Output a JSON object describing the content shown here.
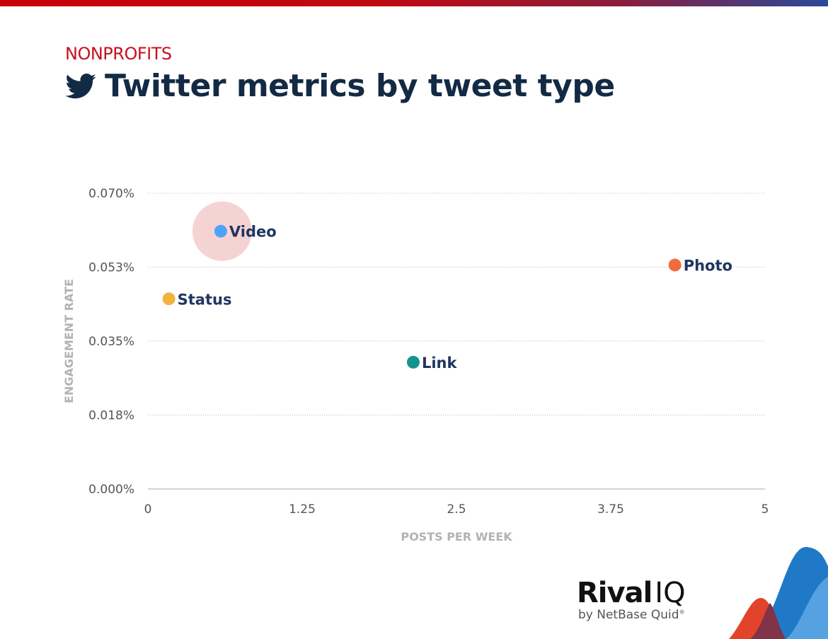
{
  "header": {
    "kicker": "NONPROFITS",
    "title": "Twitter metrics by tweet type",
    "icon": "twitter-bird-icon"
  },
  "chart_data": {
    "type": "scatter",
    "xlabel": "POSTS PER WEEK",
    "ylabel": "ENGAGEMENT RATE",
    "xlim": [
      0,
      5
    ],
    "ylim": [
      0,
      0.07
    ],
    "x_ticks": [
      "0",
      "1.25",
      "2.5",
      "3.75",
      "5"
    ],
    "x_tick_values": [
      0,
      1.25,
      2.5,
      3.75,
      5
    ],
    "y_ticks": [
      "0.000%",
      "0.018%",
      "0.035%",
      "0.053%",
      "0.070%"
    ],
    "y_tick_values": [
      0,
      0.0175,
      0.035,
      0.0525,
      0.07
    ],
    "grid": "horizontal dotted",
    "points": [
      {
        "label": "Video",
        "x": 0.59,
        "y": 0.061,
        "color": "#4da3f7",
        "highlight": true,
        "highlight_color": "#f6d3d3"
      },
      {
        "label": "Photo",
        "x": 4.27,
        "y": 0.053,
        "color": "#f26b3a"
      },
      {
        "label": "Status",
        "x": 0.17,
        "y": 0.045,
        "color": "#f3b23c"
      },
      {
        "label": "Link",
        "x": 2.15,
        "y": 0.03,
        "color": "#16948e"
      }
    ]
  },
  "branding": {
    "name": "Rival",
    "name2": "IQ",
    "byline": "by NetBase Quid",
    "registered": "®"
  },
  "colors": {
    "title": "#132a45",
    "kicker": "#c8101e",
    "label": "#1f3560",
    "axis_title": "#b3b3b3"
  }
}
